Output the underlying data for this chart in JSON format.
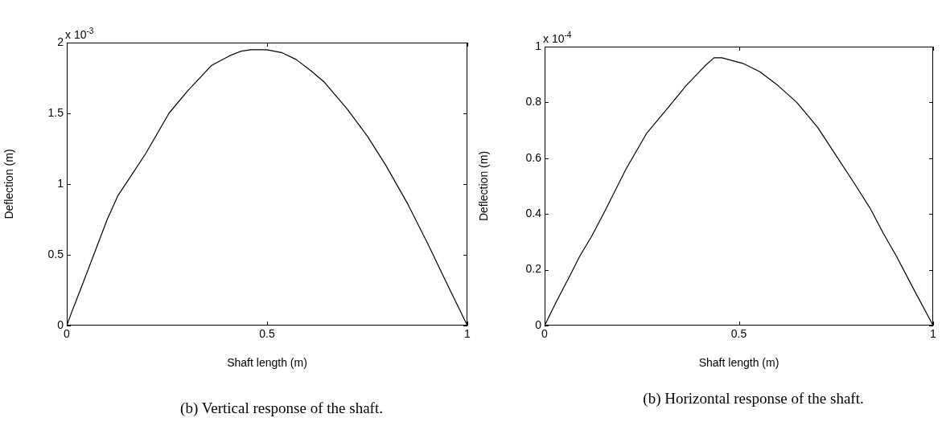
{
  "chart_data": [
    {
      "type": "line",
      "xlabel": "Shaft length (m)",
      "ylabel": "Deflection (m)",
      "xlim": [
        0,
        1
      ],
      "xticks": [
        0,
        0.5,
        1
      ],
      "ylim": [
        0,
        2
      ],
      "yticks": [
        0,
        0.5,
        1,
        1.5,
        2
      ],
      "line_style": "solid",
      "color": "#000000",
      "x": [
        0,
        0.013,
        0.035,
        0.07,
        0.101,
        0.128,
        0.161,
        0.198,
        0.255,
        0.302,
        0.362,
        0.409,
        0.436,
        0.459,
        0.499,
        0.536,
        0.573,
        0.61,
        0.643,
        0.7,
        0.75,
        0.797,
        0.851,
        0.901,
        0.95,
        1
      ],
      "values": [
        0,
        0.1,
        0.26,
        0.52,
        0.75,
        0.92,
        1.06,
        1.22,
        1.5,
        1.66,
        1.84,
        1.91,
        1.94,
        1.95,
        1.95,
        1.93,
        1.88,
        1.8,
        1.72,
        1.53,
        1.34,
        1.13,
        0.86,
        0.58,
        0.29,
        0
      ],
      "annotations": [
        "x 10$^{-3}$",
        "(b) Vertical response of the shaft."
      ]
    },
    {
      "type": "line",
      "xlabel": "Shaft length (m)",
      "ylabel": "Deflection (m)",
      "xlim": [
        0,
        1
      ],
      "xticks": [
        0,
        0.5,
        1
      ],
      "ylim": [
        0,
        1
      ],
      "yticks": [
        0,
        0.2,
        0.4,
        0.6,
        0.8,
        1
      ],
      "line_style": "solid",
      "color": "#000000",
      "x": [
        0,
        0.03,
        0.06,
        0.091,
        0.121,
        0.155,
        0.209,
        0.263,
        0.317,
        0.364,
        0.412,
        0.436,
        0.456,
        0.51,
        0.554,
        0.601,
        0.649,
        0.703,
        0.75,
        0.797,
        0.838,
        0.872,
        0.905,
        0.95,
        1
      ],
      "values": [
        0,
        0.085,
        0.165,
        0.25,
        0.32,
        0.41,
        0.56,
        0.69,
        0.78,
        0.86,
        0.93,
        0.96,
        0.96,
        0.94,
        0.91,
        0.86,
        0.8,
        0.71,
        0.61,
        0.51,
        0.42,
        0.33,
        0.25,
        0.13,
        0
      ],
      "annotations": [
        "x 10$^{-4}$",
        "(b) Horizontal response of the shaft."
      ]
    }
  ]
}
